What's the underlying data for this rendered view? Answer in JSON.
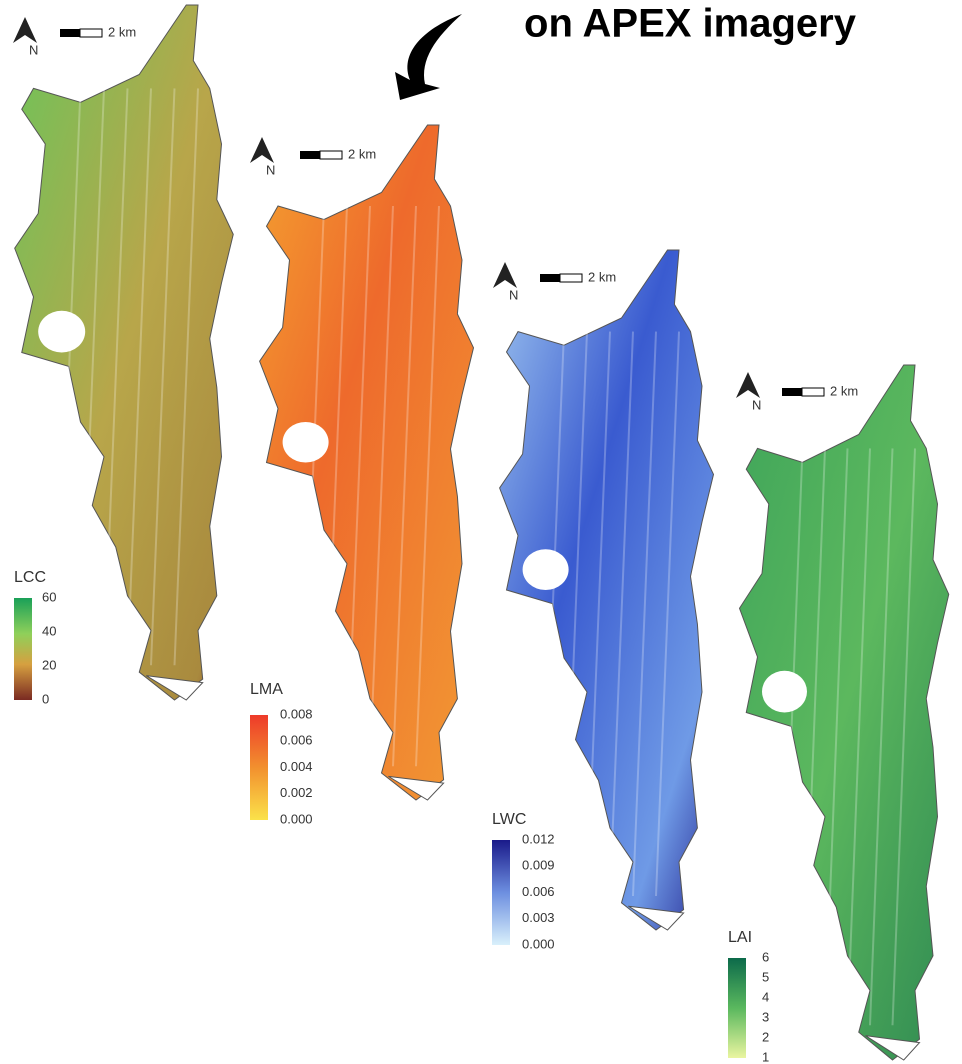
{
  "header": {
    "title": "on APEX imagery"
  },
  "maps": [
    {
      "north": "N",
      "scale": "2 km",
      "legend": {
        "title": "LCC",
        "ticks": [
          "60",
          "40",
          "20",
          "0"
        ]
      }
    },
    {
      "north": "N",
      "scale": "2 km",
      "legend": {
        "title": "LMA",
        "ticks": [
          "0.008",
          "0.006",
          "0.004",
          "0.002",
          "0.000"
        ]
      }
    },
    {
      "north": "N",
      "scale": "2 km",
      "legend": {
        "title": "LWC",
        "ticks": [
          "0.012",
          "0.009",
          "0.006",
          "0.003",
          "0.000"
        ]
      }
    },
    {
      "north": "N",
      "scale": "2 km",
      "legend": {
        "title": "LAI",
        "ticks": [
          "6",
          "5",
          "4",
          "3",
          "2",
          "1"
        ]
      }
    }
  ]
}
